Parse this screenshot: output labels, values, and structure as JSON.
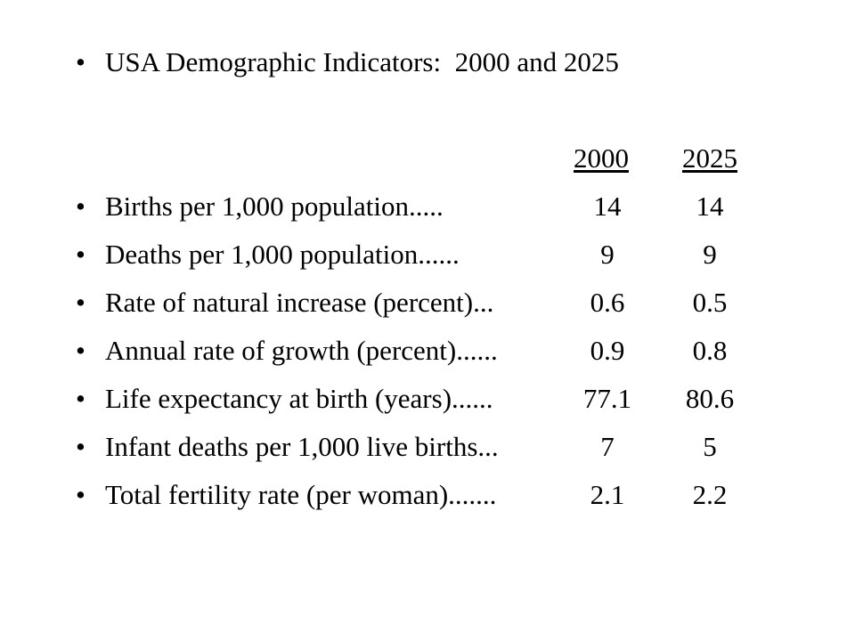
{
  "title": "USA Demographic Indicators:  2000 and 2025",
  "bullet_glyph": "•",
  "columns": [
    "2000",
    "2025"
  ],
  "rows": [
    {
      "label": "Births per 1,000 population.....",
      "v2000": "14",
      "v2025": "14"
    },
    {
      "label": "Deaths per 1,000 population......",
      "v2000": "9",
      "v2025": "9"
    },
    {
      "label": "Rate of natural increase (percent)...",
      "v2000": "0.6",
      "v2025": "0.5"
    },
    {
      "label": "Annual rate of growth (percent)......",
      "v2000": "0.9",
      "v2025": "0.8"
    },
    {
      "label": "Life expectancy at birth (years)......",
      "v2000": "77.1",
      "v2025": "80.6"
    },
    {
      "label": "Infant deaths per 1,000 live births...",
      "v2000": "7",
      "v2025": "5"
    },
    {
      "label": "Total fertility rate (per woman).......",
      "v2000": "2.1",
      "v2025": "2.2"
    }
  ]
}
